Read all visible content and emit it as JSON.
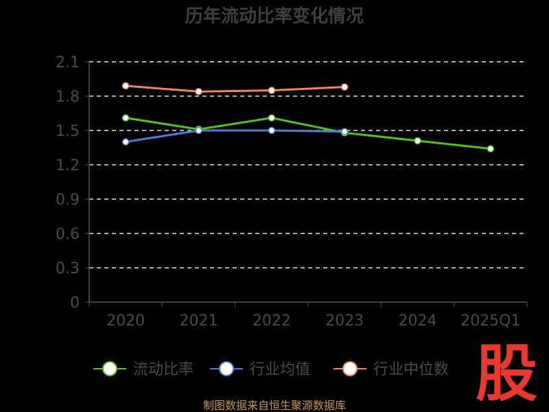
{
  "chart_data": {
    "type": "line",
    "title": "历年流动比率变化情况",
    "categories": [
      "2020",
      "2021",
      "2022",
      "2023",
      "2024",
      "2025Q1"
    ],
    "yticks": [
      "0",
      "0.3",
      "0.6",
      "0.9",
      "1.2",
      "1.5",
      "1.8",
      "2.1"
    ],
    "ylim": [
      0,
      2.1
    ],
    "grid": true,
    "legend_position": "bottom",
    "series": [
      {
        "name": "流动比率",
        "color": "#52c41a",
        "values": [
          1.61,
          1.51,
          1.61,
          1.48,
          1.41,
          1.34
        ]
      },
      {
        "name": "行业均值",
        "color": "#4a7fd9",
        "values": [
          1.4,
          1.5,
          1.5,
          1.49,
          null,
          null
        ]
      },
      {
        "name": "行业中位数",
        "color": "#f4845f",
        "values": [
          1.89,
          1.84,
          1.85,
          1.88,
          null,
          null
        ]
      }
    ]
  },
  "footer": {
    "source": "制图数据来自恒生聚源数据库",
    "logo": "股"
  }
}
